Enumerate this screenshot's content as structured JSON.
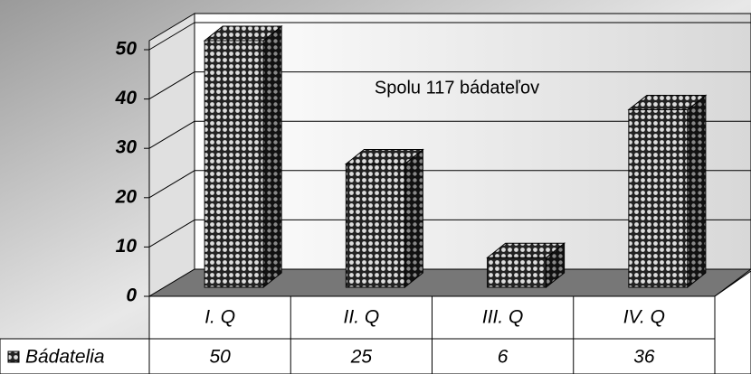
{
  "chart_data": {
    "type": "bar3d",
    "annotation": "Spolu 117 bádateľov",
    "categories": [
      "I. Q",
      "II. Q",
      "III. Q",
      "IV. Q"
    ],
    "series": [
      {
        "name": "Bádatelia",
        "color": "#333333",
        "values": [
          50,
          25,
          6,
          36
        ]
      }
    ],
    "ylim": [
      0,
      50
    ],
    "yticks": [
      0,
      10,
      20,
      30,
      40,
      50
    ],
    "grid": true,
    "data_table": true
  }
}
